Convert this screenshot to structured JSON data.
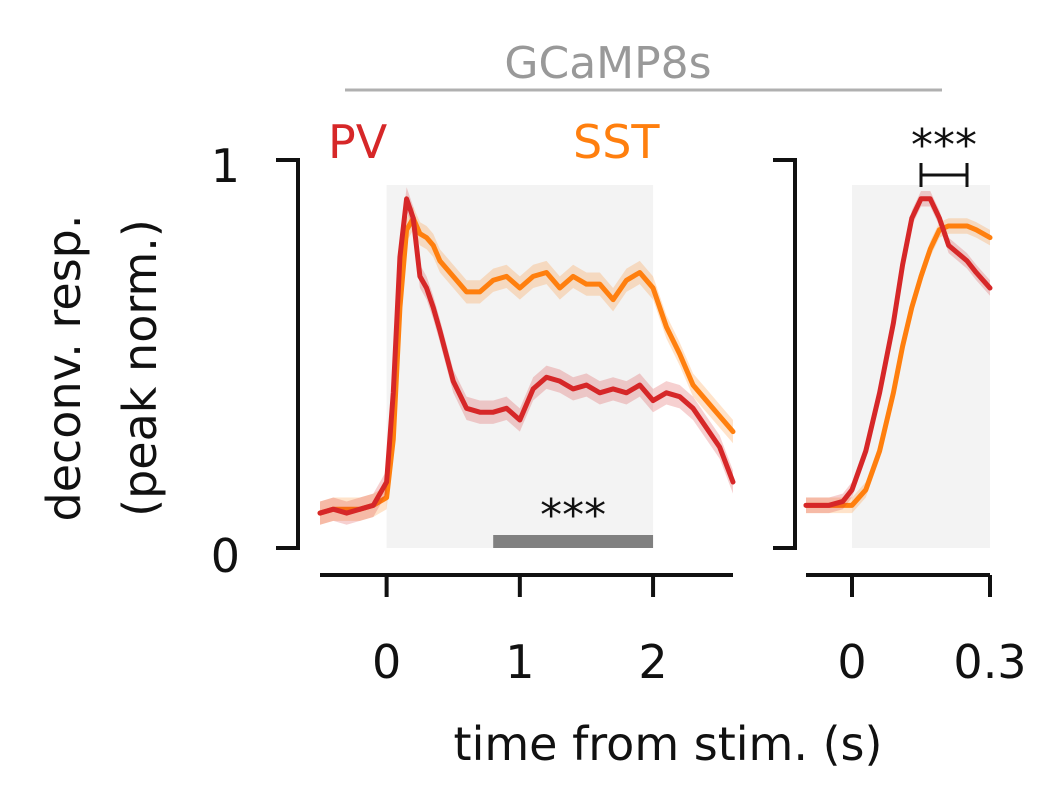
{
  "header": {
    "title": "GCaMP8s",
    "legend_pv": "PV",
    "legend_sst": "SST"
  },
  "colors": {
    "pv": "#d62728",
    "sst": "#ff7f0e",
    "title": "#999999",
    "stim_shade": "#f3f3f3",
    "sig_bar": "#808080",
    "axis": "#111111"
  },
  "axes": {
    "ylabel_line1": "deconv. resp.",
    "ylabel_line2": "(peak norm.)",
    "xlabel": "time from stim. (s)",
    "ytick_top": "1",
    "ytick_bottom": "0",
    "sig_main": "***",
    "sig_inset": "***"
  },
  "chart_data": [
    {
      "type": "line",
      "name": "main-panel",
      "xlim": [
        -0.5,
        2.6
      ],
      "ylim": [
        0,
        1
      ],
      "xticks": [
        0,
        1,
        2
      ],
      "xtick_labels": [
        "0",
        "1",
        "2"
      ],
      "yticks": [
        0,
        1
      ],
      "stim_window": [
        0,
        2
      ],
      "significance": {
        "x_range": [
          0.8,
          2.0
        ],
        "label": "***"
      },
      "series": [
        {
          "name": "PV",
          "x": [
            -0.5,
            -0.4,
            -0.3,
            -0.2,
            -0.1,
            0.0,
            0.05,
            0.1,
            0.15,
            0.2,
            0.25,
            0.3,
            0.35,
            0.4,
            0.5,
            0.6,
            0.7,
            0.8,
            0.9,
            1.0,
            1.1,
            1.2,
            1.3,
            1.4,
            1.5,
            1.6,
            1.7,
            1.8,
            1.9,
            2.0,
            2.1,
            2.2,
            2.3,
            2.4,
            2.5,
            2.6
          ],
          "y": [
            0.09,
            0.1,
            0.09,
            0.1,
            0.11,
            0.17,
            0.4,
            0.75,
            0.9,
            0.85,
            0.7,
            0.67,
            0.62,
            0.56,
            0.43,
            0.36,
            0.35,
            0.35,
            0.36,
            0.33,
            0.41,
            0.44,
            0.43,
            0.41,
            0.42,
            0.4,
            0.41,
            0.4,
            0.42,
            0.38,
            0.4,
            0.39,
            0.36,
            0.31,
            0.26,
            0.17
          ],
          "sem": 0.03
        },
        {
          "name": "SST",
          "x": [
            -0.5,
            -0.4,
            -0.3,
            -0.2,
            -0.1,
            0.0,
            0.05,
            0.1,
            0.15,
            0.2,
            0.25,
            0.3,
            0.35,
            0.4,
            0.5,
            0.6,
            0.7,
            0.8,
            0.9,
            1.0,
            1.1,
            1.2,
            1.3,
            1.4,
            1.5,
            1.6,
            1.7,
            1.8,
            1.9,
            2.0,
            2.1,
            2.2,
            2.3,
            2.4,
            2.5,
            2.6
          ],
          "y": [
            0.09,
            0.1,
            0.1,
            0.1,
            0.11,
            0.13,
            0.28,
            0.62,
            0.82,
            0.85,
            0.81,
            0.8,
            0.78,
            0.74,
            0.7,
            0.66,
            0.66,
            0.69,
            0.7,
            0.67,
            0.7,
            0.71,
            0.67,
            0.7,
            0.68,
            0.68,
            0.64,
            0.69,
            0.71,
            0.67,
            0.57,
            0.5,
            0.42,
            0.38,
            0.34,
            0.3
          ],
          "sem": 0.03
        }
      ]
    },
    {
      "type": "line",
      "name": "inset-panel",
      "xlim": [
        -0.1,
        0.3
      ],
      "ylim": [
        0,
        1
      ],
      "xticks": [
        0,
        0.3
      ],
      "xtick_labels": [
        "0",
        "0.3"
      ],
      "stim_window": [
        0,
        0.3
      ],
      "significance": {
        "x_range": [
          0.15,
          0.25
        ],
        "label": "***"
      },
      "series": [
        {
          "name": "PV",
          "x": [
            -0.1,
            -0.05,
            -0.02,
            0.0,
            0.03,
            0.06,
            0.09,
            0.11,
            0.13,
            0.15,
            0.17,
            0.19,
            0.21,
            0.23,
            0.25,
            0.27,
            0.3
          ],
          "y": [
            0.11,
            0.11,
            0.12,
            0.15,
            0.25,
            0.4,
            0.58,
            0.73,
            0.85,
            0.9,
            0.9,
            0.85,
            0.78,
            0.76,
            0.74,
            0.71,
            0.67
          ],
          "sem": 0.02
        },
        {
          "name": "SST",
          "x": [
            -0.1,
            -0.05,
            -0.02,
            0.0,
            0.03,
            0.06,
            0.09,
            0.11,
            0.13,
            0.15,
            0.17,
            0.19,
            0.21,
            0.23,
            0.25,
            0.27,
            0.3
          ],
          "y": [
            0.11,
            0.11,
            0.11,
            0.11,
            0.15,
            0.25,
            0.4,
            0.52,
            0.62,
            0.7,
            0.77,
            0.82,
            0.83,
            0.83,
            0.83,
            0.82,
            0.8
          ],
          "sem": 0.02
        }
      ]
    }
  ]
}
